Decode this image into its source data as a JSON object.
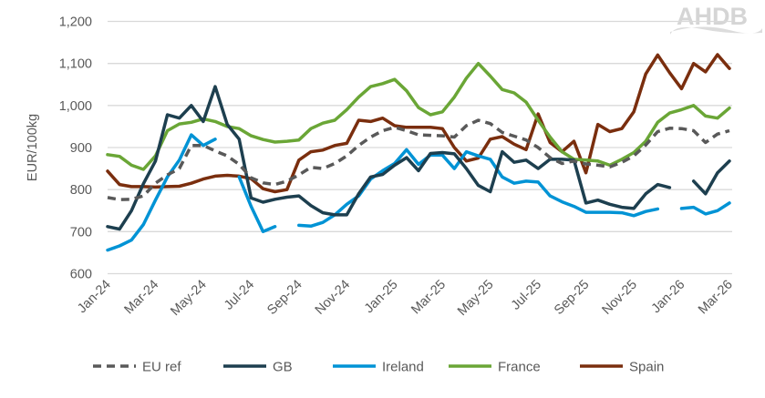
{
  "logo": "AHDB",
  "chart_data": {
    "type": "line",
    "ylabel": "EUR/100kg",
    "xlabel": "",
    "ylim": [
      600,
      1200
    ],
    "yticks": [
      "600",
      "700",
      "800",
      "900",
      "1,000",
      "1,100",
      "1,200"
    ],
    "ytick_values": [
      600,
      700,
      800,
      900,
      1000,
      1100,
      1200
    ],
    "xticks": [
      "Jan-24",
      "Mar-24",
      "May-24",
      "Jul-24",
      "Sep-24",
      "Nov-24",
      "Jan-25",
      "Mar-25",
      "May-25",
      "Jul-25",
      "Sep-25",
      "Nov-25",
      "Jan-26",
      "Mar-26"
    ],
    "xtick_dates": [
      "2024-01-01",
      "2024-03-01",
      "2024-05-01",
      "2024-07-01",
      "2024-09-01",
      "2024-11-01",
      "2025-01-01",
      "2025-03-01",
      "2025-05-01",
      "2025-07-01",
      "2025-09-01",
      "2025-11-01",
      "2026-01-01",
      "2026-03-01"
    ],
    "grid": "horizontal",
    "legend": "bottom",
    "x": [
      "2024-01-01",
      "2024-01-16",
      "2024-02-01",
      "2024-02-16",
      "2024-03-01",
      "2024-03-16",
      "2024-04-01",
      "2024-04-16",
      "2024-05-01",
      "2024-05-16",
      "2024-06-01",
      "2024-06-16",
      "2024-07-01",
      "2024-07-16",
      "2024-08-01",
      "2024-08-16",
      "2024-09-01",
      "2024-09-16",
      "2024-10-01",
      "2024-10-16",
      "2024-11-01",
      "2024-11-16",
      "2024-12-01",
      "2024-12-16",
      "2025-01-01",
      "2025-01-16",
      "2025-02-01",
      "2025-02-16",
      "2025-03-01",
      "2025-03-16",
      "2025-04-01",
      "2025-04-16",
      "2025-05-01",
      "2025-05-16",
      "2025-06-01",
      "2025-06-16",
      "2025-07-01",
      "2025-07-16",
      "2025-08-01",
      "2025-08-16",
      "2025-09-01",
      "2025-09-16",
      "2025-10-01",
      "2025-10-16",
      "2025-11-01",
      "2025-11-16",
      "2025-12-01",
      "2025-12-16",
      "2026-01-01",
      "2026-01-16",
      "2026-02-01",
      "2026-02-16",
      "2026-03-01"
    ],
    "series": [
      {
        "name": "EU ref",
        "color": "#595959",
        "dashed": true,
        "values": [
          781,
          776,
          777,
          785,
          815,
          835,
          850,
          905,
          905,
          892,
          880,
          860,
          828,
          816,
          812,
          820,
          835,
          853,
          850,
          862,
          880,
          905,
          925,
          940,
          948,
          940,
          930,
          929,
          928,
          925,
          952,
          965,
          957,
          936,
          927,
          918,
          900,
          876,
          862,
          868,
          861,
          858,
          854,
          865,
          880,
          906,
          938,
          946,
          945,
          940,
          912,
          932,
          940
        ]
      },
      {
        "name": "GB",
        "color": "#1d3f4f",
        "dashed": false,
        "values": [
          712,
          706,
          750,
          814,
          868,
          978,
          970,
          1000,
          962,
          1045,
          955,
          920,
          780,
          770,
          777,
          782,
          785,
          762,
          745,
          740,
          740,
          790,
          830,
          836,
          858,
          876,
          845,
          886,
          888,
          885,
          850,
          810,
          795,
          890,
          865,
          870,
          850,
          872,
          872,
          870,
          768,
          775,
          765,
          758,
          755,
          790,
          812,
          805,
          null,
          820,
          790,
          840,
          868
        ]
      },
      {
        "name": "Ireland",
        "color": "#0093d5",
        "dashed": false,
        "values": [
          656,
          666,
          680,
          717,
          775,
          830,
          870,
          930,
          905,
          920,
          null,
          830,
          760,
          700,
          712,
          null,
          715,
          713,
          722,
          740,
          765,
          785,
          825,
          845,
          862,
          895,
          860,
          882,
          882,
          850,
          890,
          880,
          872,
          830,
          815,
          820,
          818,
          785,
          771,
          760,
          746,
          746,
          746,
          745,
          738,
          748,
          754,
          null,
          755,
          758,
          742,
          750,
          768
        ]
      },
      {
        "name": "France",
        "color": "#6aa636",
        "dashed": false,
        "values": [
          883,
          879,
          858,
          848,
          880,
          940,
          956,
          960,
          968,
          962,
          950,
          945,
          928,
          919,
          913,
          915,
          918,
          945,
          958,
          965,
          990,
          1020,
          1045,
          1052,
          1062,
          1035,
          995,
          978,
          985,
          1020,
          1065,
          1100,
          1070,
          1038,
          1030,
          1008,
          965,
          925,
          890,
          872,
          870,
          868,
          858,
          872,
          888,
          915,
          960,
          982,
          990,
          1000,
          975,
          970,
          994
        ]
      },
      {
        "name": "Spain",
        "color": "#7a2e0e",
        "dashed": false,
        "values": [
          844,
          812,
          807,
          807,
          806,
          807,
          808,
          815,
          825,
          832,
          834,
          832,
          826,
          802,
          795,
          800,
          870,
          890,
          894,
          905,
          910,
          965,
          962,
          970,
          952,
          948,
          948,
          948,
          945,
          900,
          868,
          875,
          920,
          926,
          908,
          895,
          980,
          912,
          890,
          915,
          840,
          955,
          938,
          945,
          985,
          1075,
          1120,
          1078,
          1040,
          1100,
          1080,
          1121,
          1088
        ]
      }
    ]
  }
}
